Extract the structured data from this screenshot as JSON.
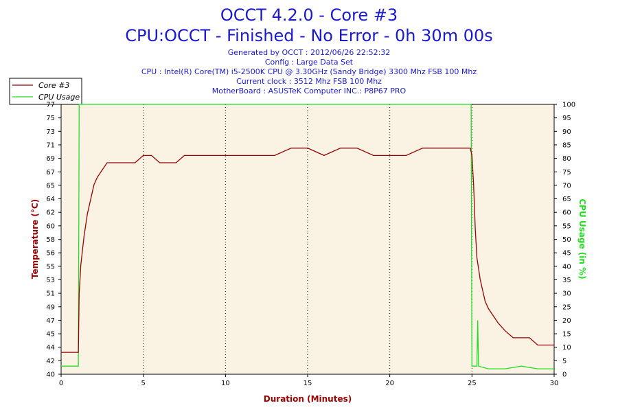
{
  "header": {
    "title": "OCCT 4.2.0 - Core #3",
    "subtitle": "CPU:OCCT - Finished - No Error - 0h 30m 00s",
    "info": [
      "Generated by OCCT : 2012/06/26 22:52:32",
      "Config : Large Data Set",
      "CPU : Intel(R) Core(TM) i5-2500K CPU @ 3.30GHz (Sandy Bridge) 3300 Mhz FSB 100 Mhz",
      "Current clock : 3512 Mhz FSB 100 Mhz",
      "MotherBoard : ASUSTeK Computer INC.: P8P67 PRO"
    ]
  },
  "colors": {
    "temperature": "#990000",
    "cpu_usage": "#22dd22",
    "plot_background": "#faf3e4",
    "title": "#1a1acc"
  },
  "chart_data": {
    "type": "line",
    "xlabel": "Duration (Minutes)",
    "ylabel_left": "Temperature (°C)",
    "ylabel_right": "CPU Usage (in %)",
    "xlim": [
      0,
      30
    ],
    "ylim_left": [
      40,
      77
    ],
    "ylim_right": [
      0,
      100
    ],
    "x_ticks": [
      0,
      5,
      10,
      15,
      20,
      25,
      30
    ],
    "y_left_ticks": [
      40,
      42,
      44,
      45,
      47,
      49,
      51,
      53,
      55,
      56,
      58,
      60,
      62,
      64,
      65,
      67,
      69,
      71,
      73,
      75,
      77
    ],
    "y_right_ticks": [
      0,
      5,
      10,
      15,
      20,
      25,
      30,
      35,
      40,
      45,
      50,
      55,
      60,
      65,
      70,
      75,
      80,
      85,
      90,
      95,
      100
    ],
    "grid": true,
    "legend": "top-left",
    "series": [
      {
        "name": "Core #3",
        "axis": "left",
        "x": [
          0,
          0.3,
          0.6,
          0.9,
          1.05,
          1.1,
          1.2,
          1.4,
          1.6,
          1.8,
          2.0,
          2.2,
          2.5,
          2.8,
          3.0,
          3.5,
          4.0,
          4.5,
          5.0,
          5.5,
          6.0,
          6.5,
          7.0,
          7.5,
          8.0,
          8.5,
          9.0,
          9.5,
          10.0,
          11.0,
          12.0,
          13.0,
          14.0,
          15.0,
          16.0,
          17.0,
          18.0,
          19.0,
          20.0,
          21.0,
          22.0,
          23.0,
          24.0,
          24.6,
          24.9,
          25.0,
          25.1,
          25.2,
          25.3,
          25.5,
          25.8,
          26.0,
          26.3,
          26.6,
          27.0,
          27.5,
          28.0,
          28.5,
          29.0,
          29.5,
          30.0
        ],
        "y": [
          43,
          43,
          43,
          43,
          43,
          51,
          55,
          59,
          62,
          64,
          66,
          67,
          68,
          69,
          69,
          69,
          69,
          69,
          70,
          70,
          69,
          69,
          69,
          70,
          70,
          70,
          70,
          70,
          70,
          70,
          70,
          70,
          71,
          71,
          70,
          71,
          71,
          70,
          70,
          70,
          71,
          71,
          71,
          71,
          71,
          70,
          66,
          60,
          56,
          53,
          50,
          49,
          48,
          47,
          46,
          45,
          45,
          45,
          44,
          44,
          44
        ]
      },
      {
        "name": "CPU Usage",
        "axis": "right",
        "x": [
          0,
          0.5,
          1.0,
          1.05,
          1.1,
          5,
          10,
          15,
          20,
          24.9,
          24.95,
          25.0,
          25.3,
          25.35,
          25.4,
          26,
          27,
          28,
          29,
          30
        ],
        "y": [
          3,
          3,
          3,
          3,
          100,
          100,
          100,
          100,
          100,
          100,
          100,
          3,
          3,
          20,
          3,
          2,
          2,
          3,
          2,
          2
        ]
      }
    ]
  }
}
